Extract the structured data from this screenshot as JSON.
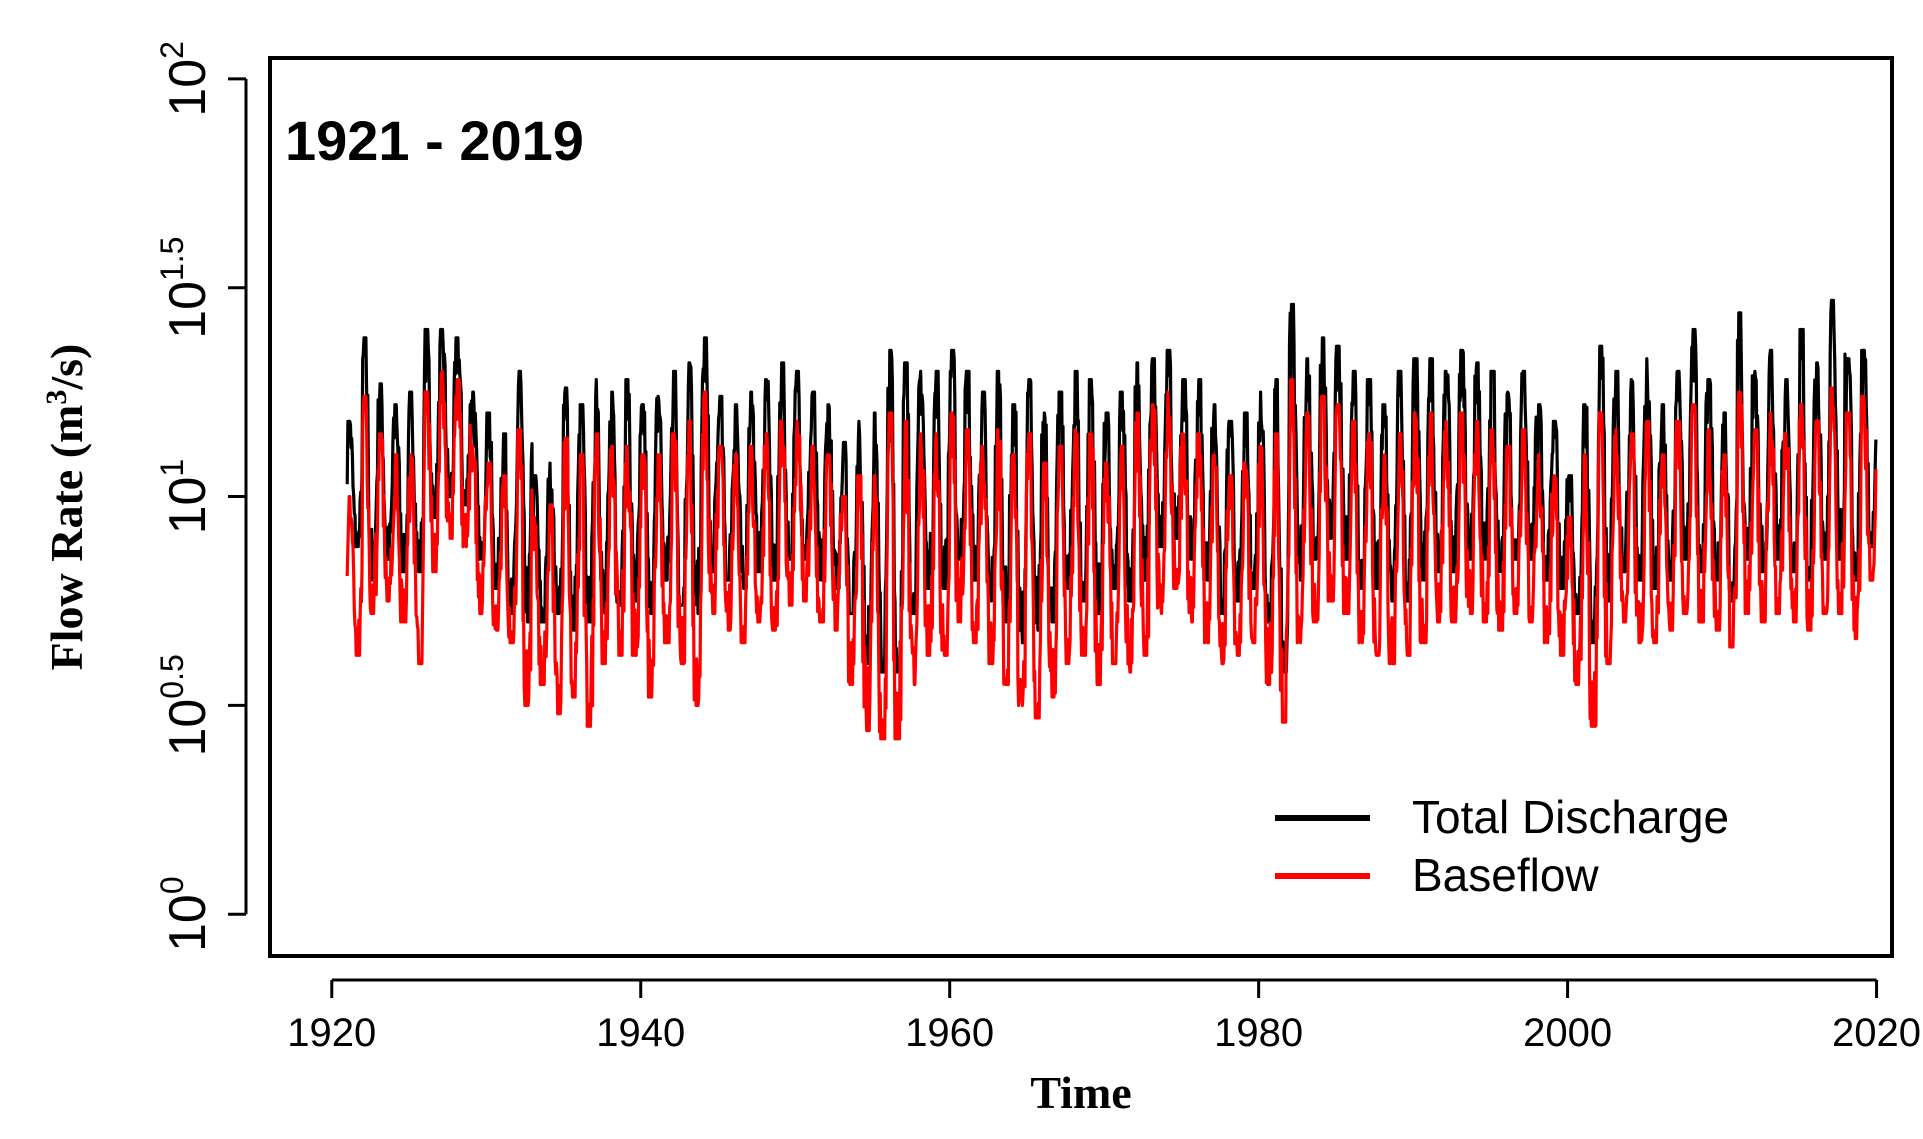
{
  "chart_data": {
    "type": "line",
    "annotation": "1921 - 2019",
    "xlabel": "Time",
    "ylabel_text": "Flow Rate (m",
    "ylabel_sup": "3",
    "ylabel_end": "/s)",
    "xlim": [
      1916,
      2021
    ],
    "ylim_log10": [
      -0.1,
      2.05
    ],
    "x_ticks": [
      1920,
      1940,
      1960,
      1980,
      2000,
      2020
    ],
    "x_tick_labels": [
      "1920",
      "1940",
      "1960",
      "1980",
      "2000",
      "2020"
    ],
    "y_ticks_log10": [
      0,
      0.5,
      1,
      1.5,
      2
    ],
    "y_tick_bases": [
      "10",
      "10",
      "10",
      "10",
      "10"
    ],
    "y_tick_exps": [
      "0",
      "0.5",
      "1",
      "1.5",
      "2"
    ],
    "legend_position": "bottom-right",
    "x_years": [
      1921,
      1922,
      1923,
      1924,
      1925,
      1926,
      1927,
      1928,
      1929,
      1930,
      1931,
      1932,
      1933,
      1934,
      1935,
      1936,
      1937,
      1938,
      1939,
      1940,
      1941,
      1942,
      1943,
      1944,
      1945,
      1946,
      1947,
      1948,
      1949,
      1950,
      1951,
      1952,
      1953,
      1954,
      1955,
      1956,
      1957,
      1958,
      1959,
      1960,
      1961,
      1962,
      1963,
      1964,
      1965,
      1966,
      1967,
      1968,
      1969,
      1970,
      1971,
      1972,
      1973,
      1974,
      1975,
      1976,
      1977,
      1978,
      1979,
      1980,
      1981,
      1982,
      1983,
      1984,
      1985,
      1986,
      1987,
      1988,
      1989,
      1990,
      1991,
      1992,
      1993,
      1994,
      1995,
      1996,
      1997,
      1998,
      1999,
      2000,
      2001,
      2002,
      2003,
      2004,
      2005,
      2006,
      2007,
      2008,
      2009,
      2010,
      2011,
      2012,
      2013,
      2014,
      2015,
      2016,
      2017,
      2018,
      2019
    ],
    "series": [
      {
        "name": "Total Discharge",
        "color": "#000000",
        "annual_peak_log10": [
          1.18,
          1.38,
          1.27,
          1.22,
          1.25,
          1.4,
          1.4,
          1.38,
          1.25,
          1.2,
          1.15,
          1.3,
          1.05,
          1.08,
          1.26,
          1.22,
          1.28,
          1.25,
          1.28,
          1.22,
          1.24,
          1.3,
          1.32,
          1.38,
          1.24,
          1.22,
          1.25,
          1.28,
          1.32,
          1.3,
          1.25,
          1.22,
          1.13,
          1.18,
          1.2,
          1.35,
          1.32,
          1.3,
          1.3,
          1.35,
          1.3,
          1.25,
          1.3,
          1.22,
          1.28,
          1.2,
          1.25,
          1.3,
          1.28,
          1.2,
          1.25,
          1.32,
          1.33,
          1.35,
          1.28,
          1.28,
          1.22,
          1.18,
          1.2,
          1.25,
          1.28,
          1.46,
          1.33,
          1.38,
          1.36,
          1.3,
          1.28,
          1.22,
          1.3,
          1.33,
          1.33,
          1.3,
          1.35,
          1.32,
          1.3,
          1.25,
          1.3,
          1.22,
          1.18,
          1.05,
          1.22,
          1.36,
          1.3,
          1.28,
          1.33,
          1.22,
          1.3,
          1.4,
          1.28,
          1.2,
          1.44,
          1.3,
          1.35,
          1.28,
          1.4,
          1.32,
          1.47,
          1.33,
          1.35
        ],
        "annual_min_log10": [
          0.88,
          0.8,
          0.85,
          0.82,
          0.82,
          0.95,
          1.0,
          0.98,
          0.85,
          0.78,
          0.72,
          0.7,
          0.7,
          0.72,
          0.68,
          0.7,
          0.72,
          0.74,
          0.75,
          0.72,
          0.8,
          0.74,
          0.72,
          0.82,
          0.8,
          0.78,
          0.82,
          0.8,
          0.85,
          0.85,
          0.8,
          0.78,
          0.72,
          0.6,
          0.58,
          0.58,
          0.72,
          0.78,
          0.78,
          0.85,
          0.8,
          0.75,
          0.7,
          0.65,
          0.68,
          0.7,
          0.78,
          0.75,
          0.72,
          0.78,
          0.75,
          0.8,
          0.88,
          0.9,
          0.85,
          0.8,
          0.72,
          0.75,
          0.78,
          0.7,
          0.58,
          0.8,
          0.85,
          0.9,
          0.85,
          0.78,
          0.78,
          0.75,
          0.75,
          0.8,
          0.82,
          0.82,
          0.85,
          0.85,
          0.82,
          0.85,
          0.85,
          0.8,
          0.78,
          0.72,
          0.65,
          0.75,
          0.82,
          0.8,
          0.78,
          0.8,
          0.85,
          0.82,
          0.8,
          0.75,
          0.85,
          0.82,
          0.85,
          0.82,
          0.8,
          0.85,
          0.85,
          0.8,
          0.88
        ]
      },
      {
        "name": "Baseflow",
        "color": "#ff0000",
        "annual_peak_log10": [
          1.0,
          1.24,
          1.15,
          1.1,
          1.1,
          1.25,
          1.3,
          1.28,
          1.12,
          1.08,
          1.05,
          1.16,
          0.95,
          0.98,
          1.14,
          1.1,
          1.15,
          1.12,
          1.12,
          1.1,
          1.1,
          1.15,
          1.18,
          1.25,
          1.12,
          1.1,
          1.12,
          1.15,
          1.18,
          1.18,
          1.12,
          1.1,
          1.0,
          1.05,
          1.05,
          1.2,
          1.18,
          1.15,
          1.15,
          1.2,
          1.16,
          1.12,
          1.16,
          1.1,
          1.15,
          1.08,
          1.12,
          1.16,
          1.15,
          1.08,
          1.12,
          1.2,
          1.22,
          1.25,
          1.15,
          1.15,
          1.1,
          1.05,
          1.08,
          1.12,
          1.15,
          1.28,
          1.2,
          1.24,
          1.22,
          1.18,
          1.15,
          1.1,
          1.15,
          1.2,
          1.2,
          1.18,
          1.2,
          1.18,
          1.16,
          1.12,
          1.16,
          1.1,
          1.05,
          0.95,
          1.1,
          1.2,
          1.16,
          1.15,
          1.18,
          1.1,
          1.18,
          1.22,
          1.16,
          1.1,
          1.25,
          1.16,
          1.2,
          1.15,
          1.22,
          1.18,
          1.26,
          1.2,
          1.24
        ],
        "annual_min_log10": [
          0.62,
          0.72,
          0.75,
          0.7,
          0.6,
          0.82,
          0.9,
          0.88,
          0.72,
          0.68,
          0.65,
          0.5,
          0.55,
          0.48,
          0.52,
          0.45,
          0.6,
          0.62,
          0.62,
          0.52,
          0.65,
          0.6,
          0.5,
          0.72,
          0.68,
          0.65,
          0.7,
          0.68,
          0.74,
          0.75,
          0.7,
          0.68,
          0.55,
          0.44,
          0.42,
          0.42,
          0.55,
          0.62,
          0.62,
          0.7,
          0.65,
          0.6,
          0.55,
          0.5,
          0.47,
          0.52,
          0.6,
          0.62,
          0.55,
          0.6,
          0.58,
          0.62,
          0.72,
          0.78,
          0.7,
          0.65,
          0.6,
          0.62,
          0.65,
          0.55,
          0.46,
          0.65,
          0.7,
          0.75,
          0.72,
          0.65,
          0.62,
          0.6,
          0.62,
          0.65,
          0.7,
          0.7,
          0.72,
          0.7,
          0.68,
          0.72,
          0.7,
          0.65,
          0.62,
          0.55,
          0.45,
          0.6,
          0.7,
          0.65,
          0.65,
          0.68,
          0.72,
          0.7,
          0.68,
          0.64,
          0.72,
          0.7,
          0.72,
          0.7,
          0.68,
          0.72,
          0.72,
          0.66,
          0.8
        ]
      }
    ]
  }
}
